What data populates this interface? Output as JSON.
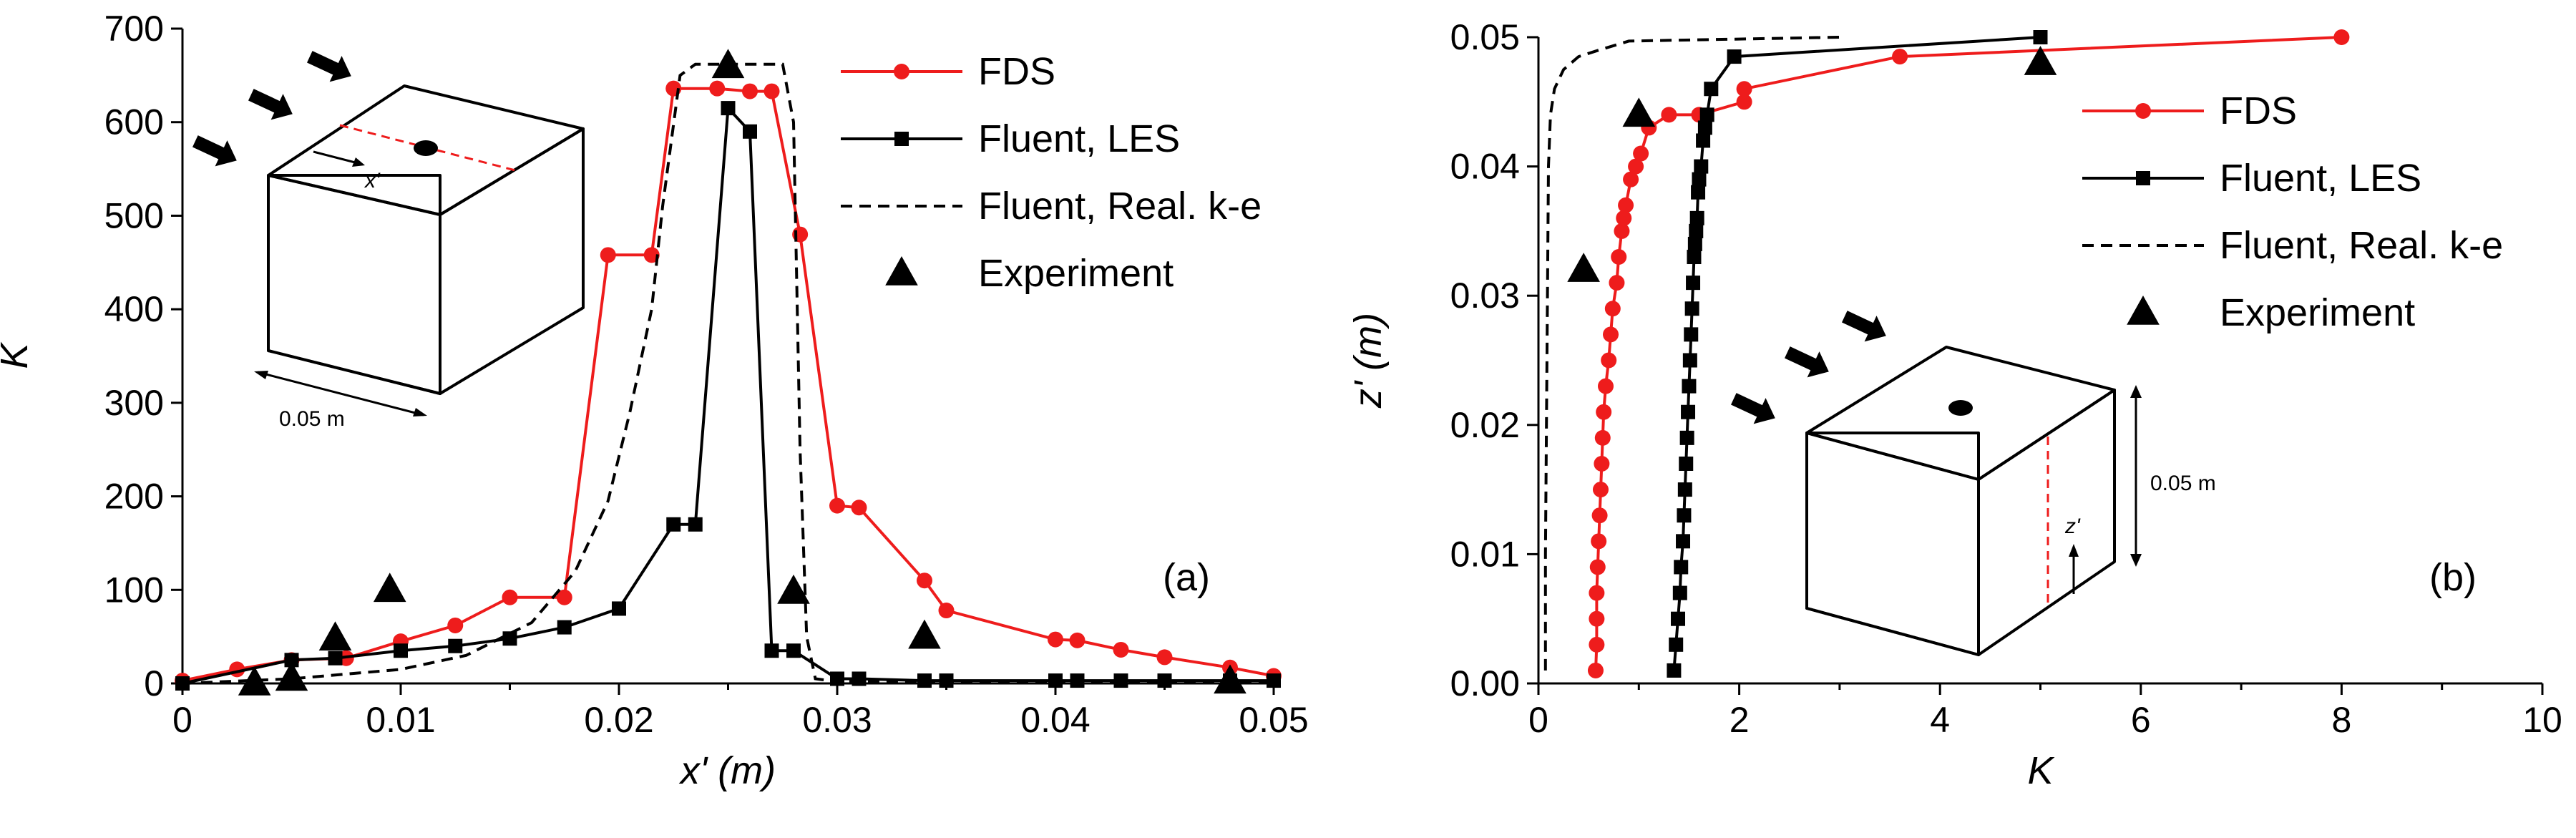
{
  "colors": {
    "fds": "#ee1c1c",
    "les": "#000000",
    "rke": "#000000",
    "exp": "#000000"
  },
  "chart_data": [
    {
      "type": "line",
      "panel_label": "(a)",
      "xlabel": "x' (m)",
      "ylabel": "K",
      "xlim": [
        0,
        0.05
      ],
      "ylim": [
        0,
        700
      ],
      "xticks": [
        0,
        0.01,
        0.02,
        0.03,
        0.04,
        0.05
      ],
      "xtick_labels": [
        "0",
        "0.01",
        "0.02",
        "0.03",
        "0.04",
        "0.05"
      ],
      "yticks": [
        0,
        100,
        200,
        300,
        400,
        500,
        600,
        700
      ],
      "ytick_labels": [
        "0",
        "100",
        "200",
        "300",
        "400",
        "500",
        "600",
        "700"
      ],
      "grid": false,
      "legend_position": "top-right",
      "inset_label": "0.05 m",
      "inset_axis_label": "x'",
      "series": [
        {
          "name": "FDS",
          "style": "line-circle",
          "x": [
            0,
            0.0025,
            0.005,
            0.0075,
            0.01,
            0.0125,
            0.015,
            0.0175,
            0.0195,
            0.0215,
            0.0225,
            0.0245,
            0.026,
            0.027,
            0.0283,
            0.03,
            0.031,
            0.034,
            0.035,
            0.04,
            0.041,
            0.043,
            0.045,
            0.048,
            0.05
          ],
          "y": [
            3,
            15,
            25,
            27,
            45,
            62,
            92,
            92,
            458,
            458,
            636,
            636,
            633,
            633,
            480,
            190,
            188,
            110,
            78,
            47,
            46,
            36,
            28,
            17,
            8
          ]
        },
        {
          "name": "Fluent, LES",
          "style": "line-square",
          "x": [
            0,
            0.005,
            0.007,
            0.01,
            0.0125,
            0.015,
            0.0175,
            0.02,
            0.0225,
            0.0235,
            0.025,
            0.026,
            0.027,
            0.028,
            0.03,
            0.031,
            0.034,
            0.035,
            0.04,
            0.041,
            0.043,
            0.045,
            0.048,
            0.05
          ],
          "y": [
            0,
            25,
            27,
            35,
            40,
            48,
            60,
            80,
            170,
            170,
            615,
            590,
            35,
            35,
            5,
            5,
            3,
            3,
            3,
            3,
            3,
            3,
            3,
            3
          ]
        },
        {
          "name": "Fluent, Real. k-e",
          "style": "dashed",
          "x": [
            0,
            0.005,
            0.01,
            0.013,
            0.016,
            0.018,
            0.0195,
            0.0205,
            0.0215,
            0.022,
            0.0228,
            0.0235,
            0.025,
            0.026,
            0.0268,
            0.0275,
            0.028,
            0.0283,
            0.0286,
            0.029,
            0.03,
            0.035,
            0.04,
            0.05
          ],
          "y": [
            0,
            5,
            15,
            30,
            65,
            120,
            195,
            290,
            400,
            510,
            650,
            662,
            662,
            662,
            662,
            662,
            600,
            250,
            50,
            5,
            2,
            2,
            2,
            2
          ]
        },
        {
          "name": "Experiment",
          "style": "triangle",
          "x": [
            0.0033,
            0.005,
            0.007,
            0.0095,
            0.025,
            0.028,
            0.034,
            0.048
          ],
          "y": [
            0,
            5,
            48,
            100,
            660,
            98,
            50,
            2
          ]
        }
      ]
    },
    {
      "type": "line",
      "panel_label": "(b)",
      "xlabel": "K",
      "ylabel": "z' (m)",
      "xlim": [
        0,
        10
      ],
      "ylim": [
        0,
        0.05
      ],
      "xticks": [
        0,
        2,
        4,
        6,
        8,
        10
      ],
      "xtick_labels": [
        "0",
        "2",
        "4",
        "6",
        "8",
        "10"
      ],
      "yticks": [
        0,
        0.01,
        0.02,
        0.03,
        0.04,
        0.05
      ],
      "ytick_labels": [
        "0.00",
        "0.01",
        "0.02",
        "0.03",
        "0.04",
        "0.05"
      ],
      "grid": false,
      "legend_position": "top-right",
      "inset_label": "0.05 m",
      "inset_axis_label": "z'",
      "series": [
        {
          "name": "FDS",
          "style": "line-circle",
          "x": [
            0.57,
            0.58,
            0.58,
            0.58,
            0.59,
            0.6,
            0.61,
            0.62,
            0.63,
            0.64,
            0.65,
            0.67,
            0.7,
            0.72,
            0.74,
            0.78,
            0.8,
            0.83,
            0.85,
            0.87,
            0.92,
            0.97,
            1.02,
            1.1,
            1.3,
            1.6,
            2.05,
            2.05,
            3.6,
            8.0
          ],
          "y": [
            0.001,
            0.003,
            0.005,
            0.007,
            0.009,
            0.011,
            0.013,
            0.015,
            0.017,
            0.019,
            0.021,
            0.023,
            0.025,
            0.027,
            0.029,
            0.031,
            0.033,
            0.035,
            0.036,
            0.037,
            0.039,
            0.04,
            0.041,
            0.043,
            0.044,
            0.044,
            0.045,
            0.046,
            0.0485,
            0.05
          ]
        },
        {
          "name": "Fluent, LES",
          "style": "line-square",
          "x": [
            1.35,
            1.37,
            1.39,
            1.41,
            1.42,
            1.44,
            1.45,
            1.46,
            1.47,
            1.48,
            1.49,
            1.5,
            1.51,
            1.52,
            1.53,
            1.54,
            1.55,
            1.56,
            1.57,
            1.58,
            1.59,
            1.6,
            1.62,
            1.64,
            1.66,
            1.68,
            1.72,
            1.95,
            5.0
          ],
          "y": [
            0.001,
            0.003,
            0.005,
            0.007,
            0.009,
            0.011,
            0.013,
            0.015,
            0.017,
            0.019,
            0.021,
            0.023,
            0.025,
            0.027,
            0.029,
            0.031,
            0.033,
            0.034,
            0.035,
            0.036,
            0.038,
            0.039,
            0.04,
            0.042,
            0.043,
            0.044,
            0.046,
            0.0485,
            0.05
          ]
        },
        {
          "name": "Fluent, Real. k-e",
          "style": "dashed",
          "x": [
            0.07,
            0.07,
            0.08,
            0.09,
            0.1,
            0.12,
            0.16,
            0.25,
            0.4,
            0.6,
            0.9,
            3.0
          ],
          "y": [
            0.001,
            0.01,
            0.02,
            0.03,
            0.04,
            0.044,
            0.046,
            0.0475,
            0.0485,
            0.049,
            0.0497,
            0.05
          ]
        },
        {
          "name": "Experiment",
          "style": "triangle",
          "x": [
            0.45,
            1.0,
            5.0
          ],
          "y": [
            0.032,
            0.044,
            0.048
          ]
        }
      ]
    }
  ]
}
